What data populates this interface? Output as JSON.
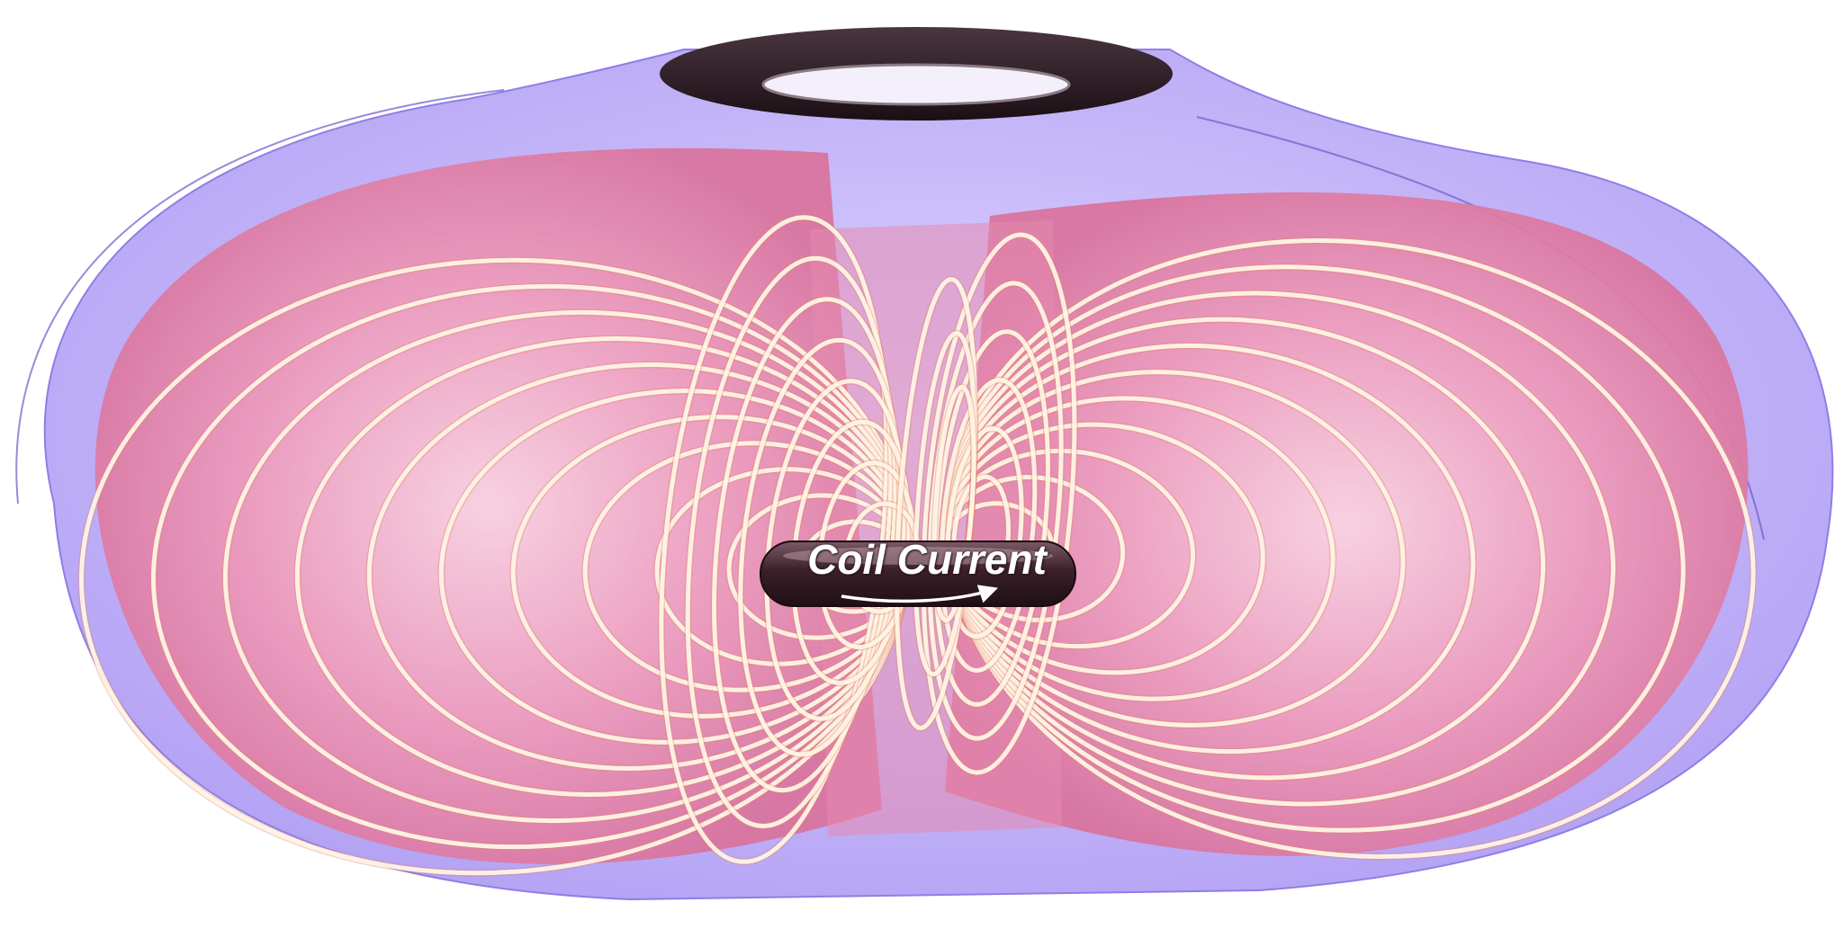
{
  "diagram": {
    "label": "Coil Current",
    "colors": {
      "outer_shell": "#b8a4f5",
      "inner_cavity": "#e88aae",
      "field_line": "#fff4e6",
      "field_line_edge": "#e0866b",
      "top_ring": "#2e1e26",
      "coil_body": "#4a2a34",
      "arrow": "#ffffff"
    },
    "icons": [
      "current-arrow-icon"
    ]
  }
}
